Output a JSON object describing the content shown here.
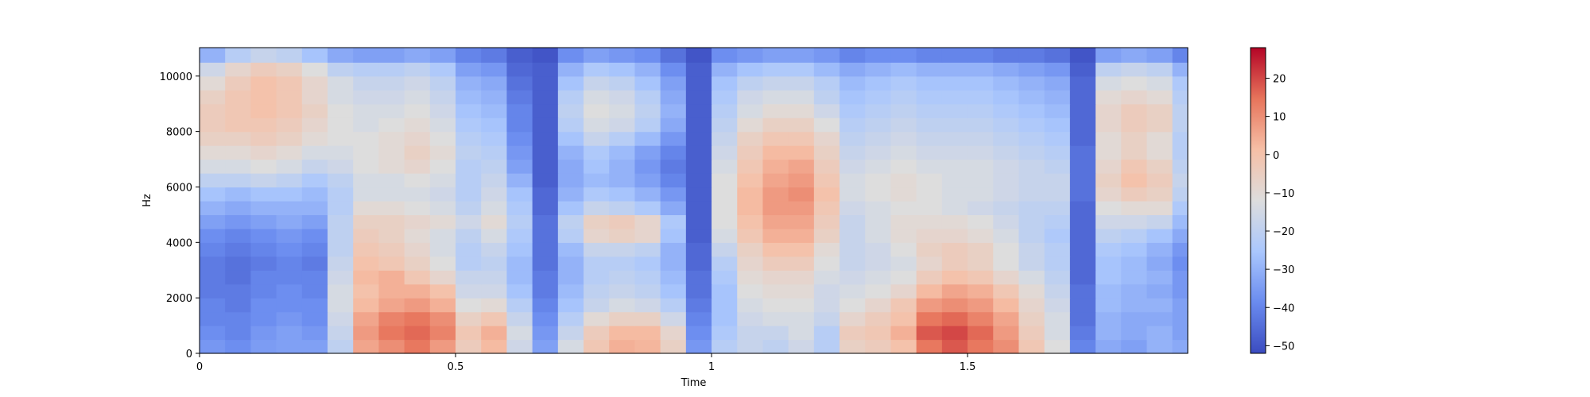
{
  "chart_data": {
    "type": "heatmap",
    "subtype": "spectrogram",
    "title": "",
    "xlabel": "Time",
    "ylabel": "Hz",
    "xlim": [
      0,
      1.93
    ],
    "ylim": [
      0,
      11025
    ],
    "x_ticks": [
      {
        "value": 0,
        "label": "0"
      },
      {
        "value": 0.5,
        "label": "0.5"
      },
      {
        "value": 1,
        "label": "1"
      },
      {
        "value": 1.5,
        "label": "1.5"
      }
    ],
    "y_ticks": [
      {
        "value": 0,
        "label": "0"
      },
      {
        "value": 2000,
        "label": "2000"
      },
      {
        "value": 4000,
        "label": "4000"
      },
      {
        "value": 6000,
        "label": "6000"
      },
      {
        "value": 8000,
        "label": "8000"
      },
      {
        "value": 10000,
        "label": "10000"
      }
    ],
    "colormap": "coolwarm",
    "colormap_stops": [
      "#3b4cc0",
      "#6a8bef",
      "#aac7fd",
      "#dddddd",
      "#f6bfa6",
      "#e7745b",
      "#b40426"
    ],
    "colorbar": {
      "vmin": -52,
      "vmax": 28,
      "ticks": [
        {
          "value": 20,
          "label": "20"
        },
        {
          "value": 10,
          "label": "10"
        },
        {
          "value": 0,
          "label": "0"
        },
        {
          "value": -10,
          "label": "−10"
        },
        {
          "value": -20,
          "label": "−20"
        },
        {
          "value": -30,
          "label": "−30"
        },
        {
          "value": -40,
          "label": "−40"
        },
        {
          "value": -50,
          "label": "−50"
        }
      ]
    },
    "time_bins": [
      0.0,
      0.05,
      0.1,
      0.15,
      0.2,
      0.25,
      0.3,
      0.35,
      0.4,
      0.45,
      0.5,
      0.55,
      0.6,
      0.65,
      0.7,
      0.75,
      0.8,
      0.85,
      0.9,
      0.95,
      1.0,
      1.05,
      1.1,
      1.15,
      1.2,
      1.25,
      1.3,
      1.35,
      1.4,
      1.45,
      1.5,
      1.55,
      1.6,
      1.65,
      1.7,
      1.75,
      1.8,
      1.85,
      1.9
    ],
    "freq_bins": [
      0,
      500,
      1000,
      1500,
      2000,
      2500,
      3000,
      3500,
      4000,
      4500,
      5000,
      5500,
      6000,
      6500,
      7000,
      7500,
      8000,
      8500,
      9000,
      9500,
      10000,
      10500
    ],
    "values_db": [
      [
        -36,
        -38,
        -35,
        -34,
        -34,
        -20,
        6,
        10,
        14,
        8,
        -4,
        2,
        -16,
        -34,
        -14,
        -2,
        4,
        3,
        -6,
        -36,
        -22,
        -18,
        -20,
        -16,
        -22,
        -6,
        -4,
        0,
        14,
        18,
        14,
        10,
        -2,
        -12,
        -40,
        -32,
        -34,
        -30,
        -32
      ],
      [
        -38,
        -40,
        -36,
        -34,
        -36,
        -18,
        8,
        14,
        16,
        12,
        -2,
        4,
        -14,
        -36,
        -18,
        -4,
        2,
        2,
        -8,
        -38,
        -24,
        -18,
        -18,
        -14,
        -22,
        -4,
        -2,
        4,
        18,
        20,
        16,
        8,
        -4,
        -14,
        -42,
        -30,
        -32,
        -30,
        -34
      ],
      [
        -40,
        -40,
        -38,
        -36,
        -38,
        -16,
        6,
        12,
        14,
        10,
        -6,
        -2,
        -18,
        -38,
        -22,
        -10,
        -6,
        -6,
        -16,
        -40,
        -26,
        -16,
        -14,
        -14,
        -18,
        -8,
        -4,
        0,
        14,
        16,
        12,
        6,
        -6,
        -14,
        -44,
        -30,
        -32,
        -32,
        -34
      ],
      [
        -40,
        -42,
        -38,
        -38,
        -38,
        -14,
        2,
        6,
        8,
        4,
        -12,
        -10,
        -22,
        -40,
        -26,
        -18,
        -14,
        -16,
        -22,
        -42,
        -26,
        -14,
        -12,
        -12,
        -16,
        -12,
        -8,
        -2,
        8,
        10,
        8,
        2,
        -8,
        -16,
        -44,
        -28,
        -30,
        -30,
        -34
      ],
      [
        -42,
        -42,
        -40,
        -38,
        -40,
        -14,
        0,
        4,
        4,
        0,
        -16,
        -16,
        -26,
        -42,
        -28,
        -20,
        -18,
        -20,
        -26,
        -44,
        -26,
        -12,
        -10,
        -10,
        -16,
        -14,
        -12,
        -8,
        2,
        6,
        4,
        -2,
        -10,
        -18,
        -44,
        -28,
        -30,
        -32,
        -36
      ],
      [
        -42,
        -44,
        -40,
        -40,
        -40,
        -16,
        2,
        4,
        -2,
        -8,
        -18,
        -18,
        -28,
        -42,
        -30,
        -22,
        -20,
        -22,
        -28,
        -44,
        -24,
        -10,
        -8,
        -8,
        -14,
        -16,
        -14,
        -12,
        -4,
        0,
        -2,
        -8,
        -14,
        -20,
        -46,
        -26,
        -28,
        -30,
        -36
      ],
      [
        -42,
        -44,
        -42,
        -40,
        -42,
        -18,
        0,
        -2,
        -6,
        -12,
        -22,
        -20,
        -28,
        -44,
        -30,
        -22,
        -22,
        -24,
        -30,
        -46,
        -22,
        -8,
        -4,
        -4,
        -12,
        -18,
        -16,
        -14,
        -8,
        -4,
        -6,
        -12,
        -18,
        -22,
        -46,
        -26,
        -28,
        -32,
        -38
      ],
      [
        -40,
        -42,
        -40,
        -38,
        -40,
        -20,
        -2,
        -4,
        -8,
        -14,
        -22,
        -18,
        -26,
        -44,
        -28,
        -18,
        -18,
        -20,
        -30,
        -46,
        -18,
        -6,
        0,
        0,
        -10,
        -18,
        -16,
        -12,
        -6,
        -4,
        -6,
        -12,
        -18,
        -22,
        -46,
        -24,
        -26,
        -30,
        -36
      ],
      [
        -38,
        -40,
        -38,
        -36,
        -38,
        -20,
        -4,
        -6,
        -10,
        -14,
        -20,
        -14,
        -24,
        -44,
        -22,
        -8,
        -6,
        -8,
        -26,
        -48,
        -14,
        -2,
        4,
        4,
        -6,
        -18,
        -14,
        -10,
        -8,
        -8,
        -10,
        -14,
        -20,
        -24,
        -46,
        -20,
        -22,
        -26,
        -32
      ],
      [
        -34,
        -36,
        -34,
        -32,
        -34,
        -20,
        -6,
        -6,
        -8,
        -10,
        -16,
        -10,
        -22,
        -44,
        -20,
        -6,
        -4,
        -8,
        -24,
        -48,
        -12,
        0,
        6,
        6,
        -4,
        -18,
        -14,
        -10,
        -10,
        -10,
        -12,
        -16,
        -20,
        -22,
        -46,
        -16,
        -16,
        -18,
        -28
      ],
      [
        -30,
        -32,
        -30,
        -30,
        -30,
        -22,
        -10,
        -10,
        -12,
        -14,
        -20,
        -14,
        -24,
        -46,
        -26,
        -18,
        -20,
        -24,
        -32,
        -48,
        -12,
        2,
        8,
        8,
        -2,
        -16,
        -14,
        -12,
        -12,
        -14,
        -16,
        -18,
        -20,
        -20,
        -46,
        -12,
        -10,
        -10,
        -24
      ],
      [
        -26,
        -28,
        -26,
        -26,
        -28,
        -22,
        -14,
        -14,
        -14,
        -16,
        -22,
        -16,
        -26,
        -46,
        -30,
        -24,
        -26,
        -30,
        -36,
        -48,
        -12,
        2,
        8,
        10,
        0,
        -14,
        -12,
        -10,
        -12,
        -14,
        -14,
        -16,
        -18,
        -18,
        -44,
        -8,
        -4,
        -6,
        -20
      ],
      [
        -20,
        -20,
        -18,
        -20,
        -24,
        -20,
        -14,
        -14,
        -12,
        -14,
        -22,
        -18,
        -30,
        -48,
        -32,
        -28,
        -30,
        -34,
        -40,
        -48,
        -12,
        0,
        6,
        8,
        -2,
        -14,
        -12,
        -10,
        -12,
        -14,
        -14,
        -16,
        -18,
        -18,
        -44,
        -6,
        0,
        -4,
        -18
      ],
      [
        -14,
        -14,
        -12,
        -14,
        -18,
        -16,
        -12,
        -10,
        -8,
        -12,
        -22,
        -20,
        -34,
        -48,
        -32,
        -26,
        -30,
        -36,
        -42,
        -48,
        -14,
        -2,
        4,
        6,
        -4,
        -16,
        -14,
        -12,
        -14,
        -14,
        -14,
        -16,
        -18,
        -20,
        -44,
        -8,
        -2,
        -6,
        -20
      ],
      [
        -10,
        -10,
        -8,
        -10,
        -14,
        -14,
        -12,
        -10,
        -6,
        -10,
        -20,
        -22,
        -36,
        -48,
        -30,
        -24,
        -28,
        -34,
        -40,
        -48,
        -16,
        -4,
        2,
        2,
        -6,
        -18,
        -16,
        -14,
        -16,
        -16,
        -16,
        -18,
        -20,
        -22,
        -44,
        -10,
        -6,
        -10,
        -22
      ],
      [
        -6,
        -6,
        -4,
        -6,
        -10,
        -12,
        -12,
        -10,
        -8,
        -12,
        -22,
        -24,
        -38,
        -48,
        -26,
        -18,
        -22,
        -28,
        -36,
        -48,
        -18,
        -6,
        -2,
        -2,
        -8,
        -20,
        -18,
        -16,
        -18,
        -18,
        -18,
        -20,
        -22,
        -24,
        -46,
        -10,
        -6,
        -10,
        -22
      ],
      [
        -4,
        -2,
        -2,
        -4,
        -8,
        -12,
        -14,
        -12,
        -10,
        -14,
        -24,
        -26,
        -40,
        -48,
        -22,
        -14,
        -16,
        -22,
        -32,
        -48,
        -20,
        -10,
        -6,
        -6,
        -12,
        -22,
        -20,
        -18,
        -20,
        -20,
        -20,
        -22,
        -24,
        -26,
        -46,
        -8,
        -4,
        -6,
        -20
      ],
      [
        -4,
        -2,
        0,
        -2,
        -6,
        -12,
        -14,
        -14,
        -12,
        -16,
        -26,
        -28,
        -40,
        -48,
        -20,
        -12,
        -14,
        -20,
        -30,
        -48,
        -22,
        -14,
        -10,
        -10,
        -16,
        -24,
        -22,
        -20,
        -22,
        -22,
        -22,
        -24,
        -26,
        -28,
        -46,
        -8,
        -4,
        -6,
        -20
      ],
      [
        -6,
        -2,
        0,
        -2,
        -8,
        -14,
        -16,
        -16,
        -14,
        -18,
        -28,
        -30,
        -42,
        -48,
        -22,
        -14,
        -16,
        -22,
        -32,
        -48,
        -24,
        -16,
        -14,
        -14,
        -20,
        -26,
        -24,
        -22,
        -24,
        -24,
        -24,
        -26,
        -28,
        -30,
        -46,
        -10,
        -8,
        -10,
        -22
      ],
      [
        -10,
        -4,
        0,
        -2,
        -8,
        -14,
        -18,
        -18,
        -16,
        -20,
        -30,
        -32,
        -44,
        -48,
        -26,
        -18,
        -20,
        -26,
        -34,
        -48,
        -26,
        -20,
        -18,
        -18,
        -22,
        -28,
        -26,
        -24,
        -26,
        -26,
        -26,
        -28,
        -30,
        -32,
        -46,
        -14,
        -12,
        -14,
        -24
      ],
      [
        -16,
        -8,
        -4,
        -6,
        -12,
        -20,
        -22,
        -22,
        -20,
        -24,
        -34,
        -36,
        -46,
        -48,
        -30,
        -24,
        -26,
        -30,
        -38,
        -48,
        -30,
        -26,
        -24,
        -24,
        -28,
        -32,
        -30,
        -28,
        -30,
        -30,
        -30,
        -32,
        -34,
        -36,
        -48,
        -20,
        -18,
        -20,
        -30
      ],
      [
        -30,
        -22,
        -18,
        -20,
        -26,
        -32,
        -34,
        -34,
        -32,
        -34,
        -40,
        -42,
        -48,
        -50,
        -38,
        -34,
        -36,
        -38,
        -44,
        -50,
        -38,
        -36,
        -34,
        -34,
        -36,
        -40,
        -38,
        -38,
        -40,
        -40,
        -40,
        -42,
        -42,
        -44,
        -50,
        -34,
        -32,
        -34,
        -40
      ]
    ]
  }
}
